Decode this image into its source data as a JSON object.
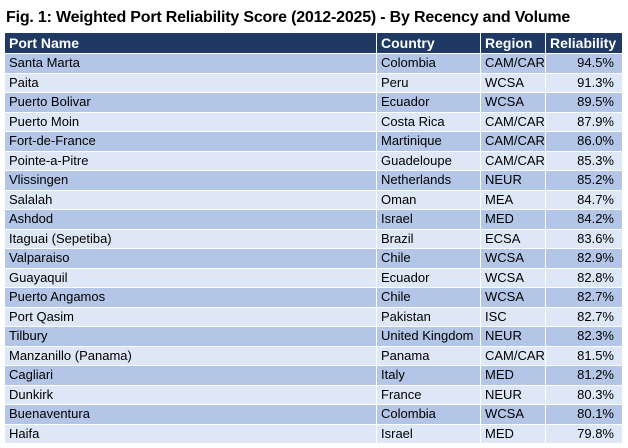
{
  "title": "Fig. 1: Weighted Port Reliability Score (2012-2025) - By Recency and Volume",
  "columns": [
    "Port Name",
    "Country",
    "Region",
    "Reliability"
  ],
  "rows": [
    [
      "Santa Marta",
      "Colombia",
      "CAM/CAR",
      "94.5%"
    ],
    [
      "Paita",
      "Peru",
      "WCSA",
      "91.3%"
    ],
    [
      "Puerto Bolivar",
      "Ecuador",
      "WCSA",
      "89.5%"
    ],
    [
      "Puerto Moin",
      "Costa Rica",
      "CAM/CAR",
      "87.9%"
    ],
    [
      "Fort-de-France",
      "Martinique",
      "CAM/CAR",
      "86.0%"
    ],
    [
      "Pointe-a-Pitre",
      "Guadeloupe",
      "CAM/CAR",
      "85.3%"
    ],
    [
      "Vlissingen",
      "Netherlands",
      "NEUR",
      "85.2%"
    ],
    [
      "Salalah",
      "Oman",
      "MEA",
      "84.7%"
    ],
    [
      "Ashdod",
      "Israel",
      "MED",
      "84.2%"
    ],
    [
      "Itaguai (Sepetiba)",
      "Brazil",
      "ECSA",
      "83.6%"
    ],
    [
      "Valparaiso",
      "Chile",
      "WCSA",
      "82.9%"
    ],
    [
      "Guayaquil",
      "Ecuador",
      "WCSA",
      "82.8%"
    ],
    [
      "Puerto Angamos",
      "Chile",
      "WCSA",
      "82.7%"
    ],
    [
      "Port Qasim",
      "Pakistan",
      "ISC",
      "82.7%"
    ],
    [
      "Tilbury",
      "United Kingdom",
      "NEUR",
      "82.3%"
    ],
    [
      "Manzanillo (Panama)",
      "Panama",
      "CAM/CAR",
      "81.5%"
    ],
    [
      "Cagliari",
      "Italy",
      "MED",
      "81.2%"
    ],
    [
      "Dunkirk",
      "France",
      "NEUR",
      "80.3%"
    ],
    [
      "Buenaventura",
      "Colombia",
      "WCSA",
      "80.1%"
    ],
    [
      "Haifa",
      "Israel",
      "MED",
      "79.8%"
    ]
  ],
  "colors": {
    "header_bg": "#1f3864",
    "header_text": "#ffffff",
    "row_odd": "#b4c6e7",
    "row_even": "#dde7f5"
  }
}
